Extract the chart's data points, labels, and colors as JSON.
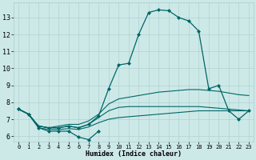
{
  "title": "",
  "xlabel": "Humidex (Indice chaleur)",
  "xlim": [
    -0.5,
    23.5
  ],
  "ylim": [
    5.7,
    13.9
  ],
  "yticks": [
    6,
    7,
    8,
    9,
    10,
    11,
    12,
    13
  ],
  "xticks": [
    0,
    1,
    2,
    3,
    4,
    5,
    6,
    7,
    8,
    9,
    10,
    11,
    12,
    13,
    14,
    15,
    16,
    17,
    18,
    19,
    20,
    21,
    22,
    23
  ],
  "bg_color": "#cce9e8",
  "grid_color": "#aacccc",
  "line_color": "#006666",
  "lines": [
    {
      "x": [
        0,
        1,
        2,
        3,
        4,
        5,
        6,
        7,
        8
      ],
      "y": [
        7.6,
        7.3,
        6.5,
        6.3,
        6.3,
        6.3,
        5.95,
        5.8,
        6.3
      ],
      "marker": "D",
      "ms": 2.0,
      "lw": 0.9
    },
    {
      "x": [
        0,
        1,
        2,
        3,
        4,
        5,
        6,
        7,
        8,
        9,
        10,
        11,
        12,
        13,
        14,
        15,
        16,
        17,
        18,
        19,
        20,
        21,
        22,
        23
      ],
      "y": [
        7.6,
        7.3,
        6.5,
        6.4,
        6.4,
        6.45,
        6.4,
        6.55,
        6.8,
        7.0,
        7.1,
        7.15,
        7.2,
        7.25,
        7.3,
        7.35,
        7.4,
        7.45,
        7.5,
        7.5,
        7.5,
        7.5,
        7.5,
        7.5
      ],
      "marker": null,
      "ms": 0,
      "lw": 0.8
    },
    {
      "x": [
        0,
        1,
        2,
        3,
        4,
        5,
        6,
        7,
        8,
        9,
        10,
        11,
        12,
        13,
        14,
        15,
        16,
        17,
        18,
        19,
        20,
        21,
        22,
        23
      ],
      "y": [
        7.6,
        7.3,
        6.6,
        6.5,
        6.5,
        6.6,
        6.5,
        6.7,
        7.1,
        7.5,
        7.7,
        7.75,
        7.75,
        7.75,
        7.75,
        7.75,
        7.75,
        7.75,
        7.75,
        7.7,
        7.65,
        7.6,
        7.55,
        7.5
      ],
      "marker": null,
      "ms": 0,
      "lw": 0.8
    },
    {
      "x": [
        0,
        1,
        2,
        3,
        4,
        5,
        6,
        7,
        8,
        9,
        10,
        11,
        12,
        13,
        14,
        15,
        16,
        17,
        18,
        19,
        20,
        21,
        22,
        23
      ],
      "y": [
        7.6,
        7.3,
        6.6,
        6.5,
        6.6,
        6.7,
        6.7,
        6.9,
        7.3,
        7.9,
        8.2,
        8.3,
        8.4,
        8.5,
        8.6,
        8.65,
        8.7,
        8.75,
        8.75,
        8.7,
        8.65,
        8.55,
        8.45,
        8.4
      ],
      "marker": null,
      "ms": 0,
      "lw": 0.8
    },
    {
      "x": [
        0,
        1,
        2,
        3,
        4,
        5,
        6,
        7,
        8,
        9,
        10,
        11,
        12,
        13,
        14,
        15,
        16,
        17,
        18,
        19,
        20,
        21,
        22,
        23
      ],
      "y": [
        7.6,
        7.3,
        6.6,
        6.5,
        6.5,
        6.6,
        6.5,
        6.7,
        7.2,
        8.8,
        10.2,
        10.3,
        12.0,
        13.3,
        13.45,
        13.4,
        13.0,
        12.8,
        12.2,
        8.8,
        9.0,
        7.5,
        7.0,
        7.5
      ],
      "marker": "D",
      "ms": 2.0,
      "lw": 0.9
    }
  ]
}
